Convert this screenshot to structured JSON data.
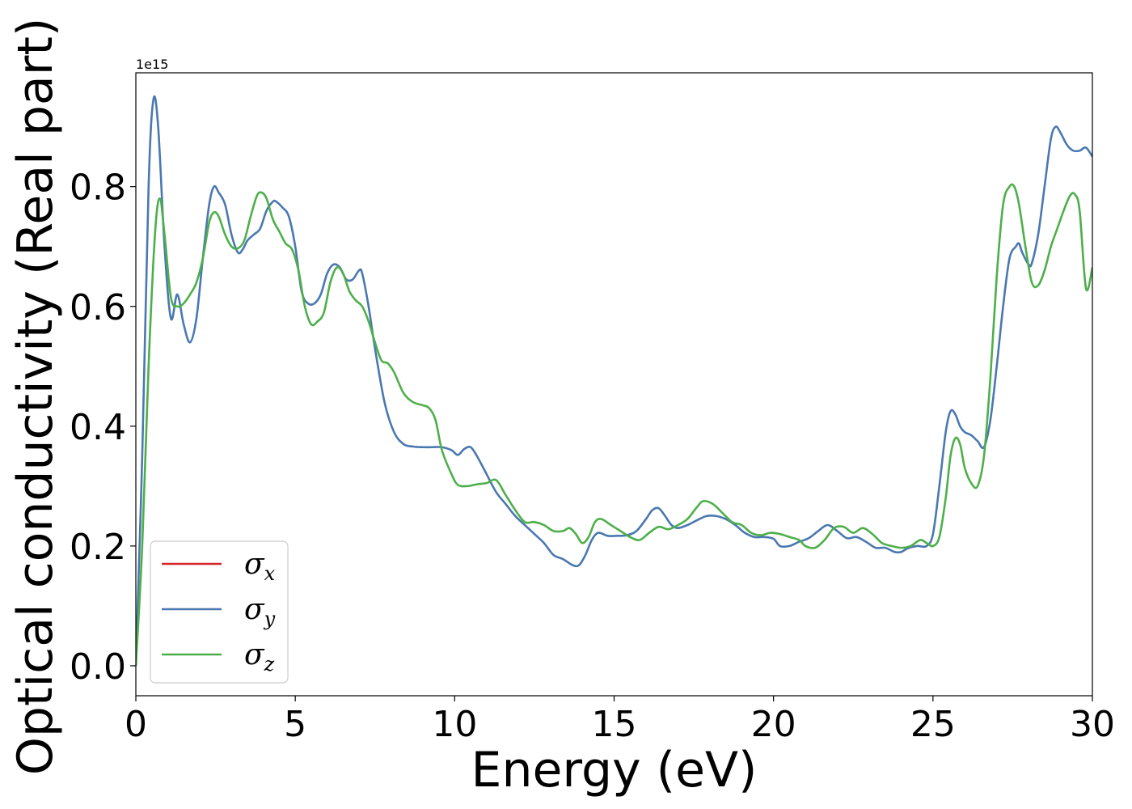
{
  "chart_data": {
    "type": "line",
    "xlabel": "Energy (eV)",
    "ylabel": "Optical conductivity (Real part)",
    "y_offset_label": "1e15",
    "xlim": [
      0,
      30
    ],
    "ylim": [
      -0.05,
      0.99
    ],
    "y_scale_factor": 1000000000000000.0,
    "grid": false,
    "legend_position": "lower-left",
    "x_ticks": [
      0,
      5,
      10,
      15,
      20,
      25,
      30
    ],
    "x_tick_labels": [
      "0",
      "5",
      "10",
      "15",
      "20",
      "25",
      "30"
    ],
    "y_ticks": [
      0.0,
      0.2,
      0.4,
      0.6,
      0.8
    ],
    "y_tick_labels": [
      "0.0",
      "0.2",
      "0.4",
      "0.6",
      "0.8"
    ],
    "series": [
      {
        "name": "σx",
        "symbol": "σ",
        "subscript": "x",
        "color": "#d62728",
        "drawn": false,
        "x": [
          0,
          0.2,
          0.4,
          0.55,
          0.7,
          0.9,
          1.1,
          1.3,
          1.5,
          1.7,
          1.9,
          2.1,
          2.3,
          2.45,
          2.6,
          2.8,
          3.0,
          3.2,
          3.35,
          3.5,
          3.7,
          3.9,
          4.1,
          4.3,
          4.4,
          4.6,
          4.8,
          5.0,
          5.2,
          5.4,
          5.6,
          5.8,
          6.0,
          6.2,
          6.4,
          6.6,
          6.8,
          7.0,
          7.1,
          7.3,
          7.5,
          7.8,
          8.1,
          8.4,
          8.7,
          9.0,
          9.3,
          9.6,
          9.9,
          10.1,
          10.3,
          10.5,
          10.7,
          11.0,
          11.3,
          11.6,
          11.9,
          12.2,
          12.5,
          12.8,
          13.1,
          13.4,
          13.7,
          13.9,
          14.1,
          14.3,
          14.5,
          14.8,
          15.1,
          15.4,
          15.7,
          16.0,
          16.2,
          16.4,
          16.6,
          16.8,
          17.0,
          17.3,
          17.6,
          17.9,
          18.2,
          18.5,
          18.8,
          19.1,
          19.4,
          19.7,
          20.0,
          20.2,
          20.5,
          20.8,
          21.1,
          21.4,
          21.7,
          22.0,
          22.3,
          22.6,
          22.9,
          23.2,
          23.5,
          23.8,
          24.0,
          24.2,
          24.5,
          24.8,
          25.0,
          25.2,
          25.4,
          25.55,
          25.7,
          25.85,
          26.0,
          26.2,
          26.4,
          26.6,
          26.8,
          27.0,
          27.2,
          27.4,
          27.6,
          27.7,
          27.8,
          28.0,
          28.1,
          28.3,
          28.5,
          28.7,
          28.85,
          29.0,
          29.2,
          29.4,
          29.6,
          29.8,
          30.0
        ],
        "y": [
          0.0,
          0.35,
          0.8,
          0.945,
          0.9,
          0.7,
          0.58,
          0.62,
          0.57,
          0.54,
          0.58,
          0.68,
          0.77,
          0.8,
          0.79,
          0.77,
          0.72,
          0.69,
          0.695,
          0.71,
          0.72,
          0.73,
          0.76,
          0.775,
          0.775,
          0.765,
          0.75,
          0.7,
          0.625,
          0.605,
          0.605,
          0.62,
          0.655,
          0.67,
          0.665,
          0.645,
          0.645,
          0.66,
          0.655,
          0.6,
          0.53,
          0.44,
          0.39,
          0.37,
          0.366,
          0.365,
          0.365,
          0.365,
          0.36,
          0.352,
          0.362,
          0.365,
          0.35,
          0.32,
          0.29,
          0.27,
          0.25,
          0.235,
          0.22,
          0.205,
          0.185,
          0.178,
          0.168,
          0.168,
          0.185,
          0.21,
          0.222,
          0.217,
          0.217,
          0.218,
          0.225,
          0.245,
          0.26,
          0.263,
          0.25,
          0.235,
          0.23,
          0.235,
          0.243,
          0.25,
          0.25,
          0.245,
          0.235,
          0.222,
          0.215,
          0.215,
          0.212,
          0.2,
          0.2,
          0.207,
          0.213,
          0.225,
          0.235,
          0.225,
          0.213,
          0.215,
          0.207,
          0.197,
          0.197,
          0.19,
          0.19,
          0.196,
          0.2,
          0.2,
          0.22,
          0.3,
          0.39,
          0.425,
          0.42,
          0.4,
          0.39,
          0.385,
          0.375,
          0.365,
          0.41,
          0.5,
          0.6,
          0.68,
          0.7,
          0.705,
          0.69,
          0.67,
          0.672,
          0.72,
          0.8,
          0.88,
          0.9,
          0.89,
          0.87,
          0.86,
          0.86,
          0.865,
          0.85
        ]
      },
      {
        "name": "σy",
        "symbol": "σ",
        "subscript": "y",
        "color": "#4a78b0",
        "drawn": true,
        "x": [
          0,
          0.2,
          0.4,
          0.55,
          0.7,
          0.9,
          1.1,
          1.3,
          1.5,
          1.7,
          1.9,
          2.1,
          2.3,
          2.45,
          2.6,
          2.8,
          3.0,
          3.2,
          3.35,
          3.5,
          3.7,
          3.9,
          4.1,
          4.3,
          4.4,
          4.6,
          4.8,
          5.0,
          5.2,
          5.4,
          5.6,
          5.8,
          6.0,
          6.2,
          6.4,
          6.6,
          6.8,
          7.0,
          7.1,
          7.3,
          7.5,
          7.8,
          8.1,
          8.4,
          8.7,
          9.0,
          9.3,
          9.6,
          9.9,
          10.1,
          10.3,
          10.5,
          10.7,
          11.0,
          11.3,
          11.6,
          11.9,
          12.2,
          12.5,
          12.8,
          13.1,
          13.4,
          13.7,
          13.9,
          14.1,
          14.3,
          14.5,
          14.8,
          15.1,
          15.4,
          15.7,
          16.0,
          16.2,
          16.4,
          16.6,
          16.8,
          17.0,
          17.3,
          17.6,
          17.9,
          18.2,
          18.5,
          18.8,
          19.1,
          19.4,
          19.7,
          20.0,
          20.2,
          20.5,
          20.8,
          21.1,
          21.4,
          21.7,
          22.0,
          22.3,
          22.6,
          22.9,
          23.2,
          23.5,
          23.8,
          24.0,
          24.2,
          24.5,
          24.8,
          25.0,
          25.2,
          25.4,
          25.55,
          25.7,
          25.85,
          26.0,
          26.2,
          26.4,
          26.6,
          26.8,
          27.0,
          27.2,
          27.4,
          27.6,
          27.7,
          27.8,
          28.0,
          28.1,
          28.3,
          28.5,
          28.7,
          28.85,
          29.0,
          29.2,
          29.4,
          29.6,
          29.8,
          30.0
        ],
        "y": [
          0.0,
          0.35,
          0.8,
          0.945,
          0.9,
          0.7,
          0.58,
          0.62,
          0.57,
          0.54,
          0.58,
          0.68,
          0.77,
          0.8,
          0.79,
          0.77,
          0.72,
          0.69,
          0.695,
          0.71,
          0.72,
          0.73,
          0.76,
          0.775,
          0.775,
          0.765,
          0.75,
          0.7,
          0.625,
          0.605,
          0.605,
          0.62,
          0.655,
          0.67,
          0.665,
          0.645,
          0.645,
          0.66,
          0.655,
          0.6,
          0.53,
          0.44,
          0.39,
          0.37,
          0.366,
          0.365,
          0.365,
          0.365,
          0.36,
          0.352,
          0.362,
          0.365,
          0.35,
          0.32,
          0.29,
          0.27,
          0.25,
          0.235,
          0.22,
          0.205,
          0.185,
          0.178,
          0.168,
          0.168,
          0.185,
          0.21,
          0.222,
          0.217,
          0.217,
          0.218,
          0.225,
          0.245,
          0.26,
          0.263,
          0.25,
          0.235,
          0.23,
          0.235,
          0.243,
          0.25,
          0.25,
          0.245,
          0.235,
          0.222,
          0.215,
          0.215,
          0.212,
          0.2,
          0.2,
          0.207,
          0.213,
          0.225,
          0.235,
          0.225,
          0.213,
          0.215,
          0.207,
          0.197,
          0.197,
          0.19,
          0.19,
          0.196,
          0.2,
          0.2,
          0.22,
          0.3,
          0.39,
          0.425,
          0.42,
          0.4,
          0.39,
          0.385,
          0.375,
          0.365,
          0.41,
          0.5,
          0.6,
          0.68,
          0.7,
          0.705,
          0.69,
          0.67,
          0.672,
          0.72,
          0.8,
          0.88,
          0.9,
          0.89,
          0.87,
          0.86,
          0.86,
          0.865,
          0.85
        ]
      },
      {
        "name": "σz",
        "symbol": "σ",
        "subscript": "z",
        "color": "#4daf4a",
        "drawn": true,
        "x": [
          0,
          0.2,
          0.4,
          0.6,
          0.75,
          0.9,
          1.1,
          1.3,
          1.5,
          1.7,
          1.9,
          2.1,
          2.3,
          2.45,
          2.6,
          2.8,
          3.0,
          3.2,
          3.4,
          3.6,
          3.8,
          3.95,
          4.1,
          4.3,
          4.5,
          4.7,
          4.9,
          5.1,
          5.3,
          5.5,
          5.7,
          5.9,
          6.1,
          6.3,
          6.5,
          6.7,
          6.9,
          7.1,
          7.3,
          7.5,
          7.7,
          7.9,
          8.1,
          8.4,
          8.7,
          9.0,
          9.2,
          9.4,
          9.6,
          9.9,
          10.1,
          10.4,
          10.7,
          11.0,
          11.3,
          11.6,
          11.9,
          12.2,
          12.5,
          12.8,
          13.1,
          13.4,
          13.6,
          13.8,
          14.0,
          14.2,
          14.4,
          14.6,
          14.9,
          15.2,
          15.5,
          15.8,
          16.1,
          16.4,
          16.7,
          17.0,
          17.3,
          17.6,
          17.8,
          18.1,
          18.4,
          18.7,
          19.0,
          19.3,
          19.6,
          19.9,
          20.2,
          20.5,
          20.8,
          21.0,
          21.3,
          21.6,
          21.9,
          22.2,
          22.5,
          22.8,
          23.1,
          23.4,
          23.7,
          24.0,
          24.3,
          24.6,
          24.8,
          25.0,
          25.2,
          25.4,
          25.55,
          25.7,
          25.85,
          26.0,
          26.2,
          26.4,
          26.6,
          26.8,
          27.0,
          27.2,
          27.4,
          27.55,
          27.7,
          27.9,
          28.1,
          28.3,
          28.5,
          28.7,
          28.9,
          29.1,
          29.3,
          29.45,
          29.6,
          29.8,
          30.0
        ],
        "y": [
          0.0,
          0.2,
          0.5,
          0.72,
          0.78,
          0.72,
          0.615,
          0.6,
          0.605,
          0.62,
          0.64,
          0.68,
          0.74,
          0.757,
          0.75,
          0.72,
          0.7,
          0.697,
          0.71,
          0.75,
          0.785,
          0.79,
          0.78,
          0.745,
          0.725,
          0.705,
          0.695,
          0.66,
          0.6,
          0.57,
          0.575,
          0.59,
          0.64,
          0.665,
          0.655,
          0.625,
          0.61,
          0.6,
          0.575,
          0.54,
          0.51,
          0.505,
          0.49,
          0.455,
          0.44,
          0.435,
          0.43,
          0.41,
          0.36,
          0.32,
          0.302,
          0.3,
          0.303,
          0.305,
          0.31,
          0.285,
          0.26,
          0.24,
          0.24,
          0.235,
          0.225,
          0.225,
          0.23,
          0.22,
          0.205,
          0.215,
          0.24,
          0.245,
          0.235,
          0.225,
          0.215,
          0.21,
          0.222,
          0.232,
          0.228,
          0.235,
          0.245,
          0.265,
          0.275,
          0.27,
          0.255,
          0.24,
          0.235,
          0.222,
          0.218,
          0.222,
          0.22,
          0.215,
          0.21,
          0.2,
          0.197,
          0.21,
          0.23,
          0.232,
          0.222,
          0.23,
          0.22,
          0.205,
          0.2,
          0.197,
          0.2,
          0.21,
          0.205,
          0.2,
          0.215,
          0.28,
          0.35,
          0.38,
          0.37,
          0.33,
          0.305,
          0.3,
          0.35,
          0.48,
          0.65,
          0.77,
          0.8,
          0.8,
          0.77,
          0.7,
          0.64,
          0.635,
          0.66,
          0.7,
          0.73,
          0.76,
          0.785,
          0.787,
          0.76,
          0.63,
          0.665
        ]
      }
    ]
  }
}
